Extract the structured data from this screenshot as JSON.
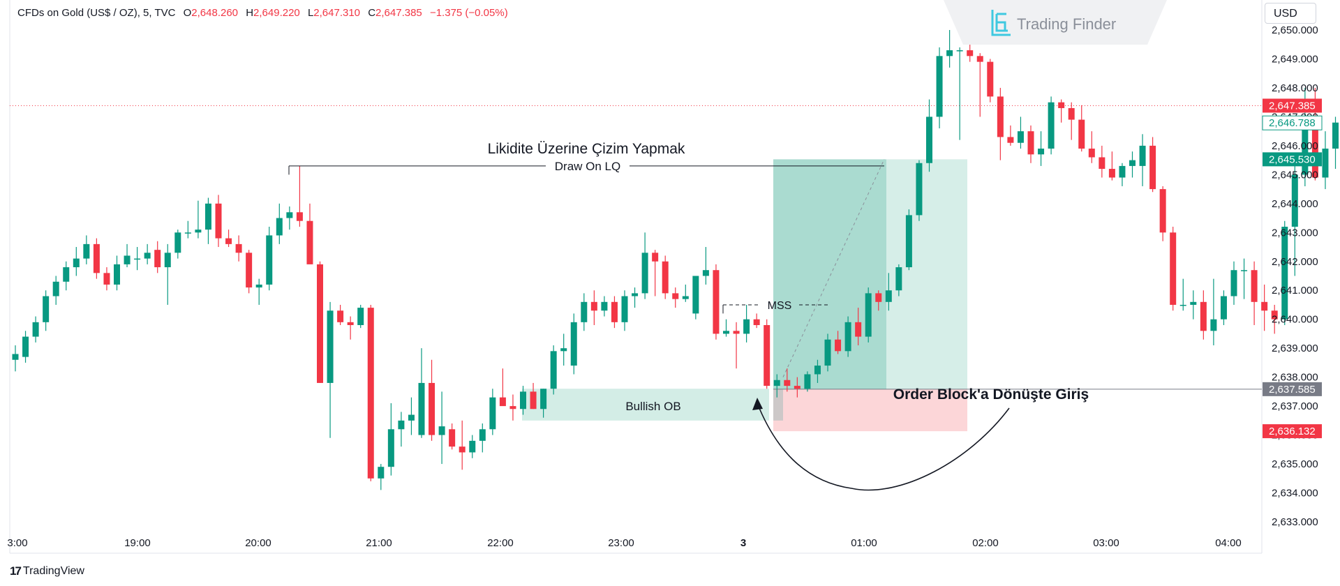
{
  "header": {
    "symbol": "CFDs on Gold (US$ / OZ), 5, TVC",
    "open_label": "O",
    "open": "2,648.260",
    "high_label": "H",
    "high": "2,649.220",
    "low_label": "L",
    "low": "2,647.310",
    "close_label": "C",
    "close": "2,647.385",
    "change": "−1.375 (−0.05%)"
  },
  "watermark": "Trading Finder",
  "currency_button": "USD",
  "footer_brand": "TradingView",
  "colors": {
    "up": "#089981",
    "down": "#f23645",
    "ob_zone": "#d3ede6",
    "target_zone": "#aadbd0",
    "target_zone_light": "#d6eee8",
    "stop_zone": "#fcd6d8"
  },
  "chart_data": {
    "type": "candlestick",
    "y_ticks": [
      "2,650.000",
      "2,649.000",
      "2,648.000",
      "2,647.000",
      "2,646.000",
      "2,645.000",
      "2,644.000",
      "2,643.000",
      "2,642.000",
      "2,641.000",
      "2,640.000",
      "2,639.000",
      "2,638.000",
      "2,637.000",
      "2,636.000",
      "2,635.000",
      "2,634.000",
      "2,633.000"
    ],
    "y_range": [
      2632.5,
      2650.3
    ],
    "x_ticks": [
      "3:00",
      "19:00",
      "20:00",
      "21:00",
      "22:00",
      "23:00",
      "3",
      "01:00",
      "02:00",
      "03:00",
      "04:00"
    ],
    "price_labels": [
      {
        "text": "2,647.385",
        "value": 2647.385,
        "kind": "last"
      },
      {
        "text": "2,646.788",
        "value": 2646.788,
        "kind": "outline"
      },
      {
        "text": "2,645.530",
        "value": 2645.53,
        "kind": "target"
      },
      {
        "text": "2,637.585",
        "value": 2637.585,
        "kind": "entry"
      },
      {
        "text": "2,636.132",
        "value": 2636.132,
        "kind": "stop"
      }
    ],
    "candles": [
      [
        2638.6,
        2639.1,
        2638.2,
        2638.8
      ],
      [
        2638.7,
        2639.6,
        2638.5,
        2639.4
      ],
      [
        2639.4,
        2640.1,
        2639.2,
        2639.9
      ],
      [
        2639.9,
        2641.0,
        2639.6,
        2640.8
      ],
      [
        2640.8,
        2641.5,
        2640.5,
        2641.3
      ],
      [
        2641.3,
        2642.0,
        2641.0,
        2641.8
      ],
      [
        2641.8,
        2642.5,
        2641.5,
        2642.1
      ],
      [
        2642.1,
        2642.9,
        2641.9,
        2642.6
      ],
      [
        2642.6,
        2642.8,
        2641.4,
        2641.6
      ],
      [
        2641.6,
        2641.8,
        2641.0,
        2641.2
      ],
      [
        2641.2,
        2642.2,
        2641.0,
        2641.9
      ],
      [
        2641.9,
        2642.6,
        2641.8,
        2642.2
      ],
      [
        2642.1,
        2642.5,
        2641.7,
        2642.1
      ],
      [
        2642.1,
        2642.6,
        2641.9,
        2642.3
      ],
      [
        2642.4,
        2642.7,
        2641.6,
        2641.8
      ],
      [
        2641.8,
        2642.6,
        2640.5,
        2642.3
      ],
      [
        2642.3,
        2643.1,
        2642.1,
        2643.0
      ],
      [
        2643.0,
        2643.4,
        2642.8,
        2643.0
      ],
      [
        2643.0,
        2644.1,
        2642.8,
        2643.1
      ],
      [
        2643.1,
        2644.2,
        2642.6,
        2644.0
      ],
      [
        2644.0,
        2644.3,
        2642.5,
        2642.8
      ],
      [
        2642.8,
        2643.1,
        2642.5,
        2642.6
      ],
      [
        2642.6,
        2642.9,
        2642.0,
        2642.3
      ],
      [
        2642.3,
        2642.4,
        2640.9,
        2641.1
      ],
      [
        2641.1,
        2641.4,
        2640.5,
        2641.2
      ],
      [
        2641.2,
        2643.2,
        2641.0,
        2642.9
      ],
      [
        2642.9,
        2644.0,
        2642.6,
        2643.5
      ],
      [
        2643.5,
        2643.9,
        2643.1,
        2643.7
      ],
      [
        2643.7,
        2645.3,
        2643.2,
        2643.4
      ],
      [
        2643.4,
        2644.0,
        2642.0,
        2641.9
      ],
      [
        2641.9,
        2642.0,
        2637.8,
        2637.8
      ],
      [
        2637.8,
        2640.6,
        2635.9,
        2640.3
      ],
      [
        2640.3,
        2640.5,
        2639.8,
        2639.9
      ],
      [
        2639.9,
        2640.1,
        2639.3,
        2639.8
      ],
      [
        2639.8,
        2640.5,
        2639.7,
        2640.4
      ],
      [
        2640.4,
        2640.5,
        2634.4,
        2634.5
      ],
      [
        2634.5,
        2635.0,
        2634.1,
        2634.9
      ],
      [
        2634.9,
        2637.1,
        2634.6,
        2636.2
      ],
      [
        2636.2,
        2636.8,
        2635.6,
        2636.5
      ],
      [
        2636.5,
        2637.3,
        2636.0,
        2636.7
      ],
      [
        2636.0,
        2639.0,
        2635.9,
        2637.8
      ],
      [
        2637.8,
        2638.6,
        2635.8,
        2636.0
      ],
      [
        2636.0,
        2637.5,
        2635.0,
        2636.3
      ],
      [
        2636.2,
        2636.4,
        2635.5,
        2635.6
      ],
      [
        2635.6,
        2636.5,
        2634.8,
        2635.4
      ],
      [
        2635.4,
        2636.0,
        2635.2,
        2635.8
      ],
      [
        2635.8,
        2636.4,
        2635.4,
        2636.2
      ],
      [
        2636.2,
        2637.6,
        2636.0,
        2637.3
      ],
      [
        2637.3,
        2638.3,
        2637.1,
        2637.0
      ],
      [
        2637.0,
        2637.4,
        2636.5,
        2636.9
      ],
      [
        2636.9,
        2637.7,
        2636.7,
        2637.5
      ],
      [
        2637.5,
        2637.8,
        2636.9,
        2636.9
      ],
      [
        2636.9,
        2637.6,
        2636.6,
        2637.6
      ],
      [
        2637.6,
        2639.1,
        2637.4,
        2638.9
      ],
      [
        2638.9,
        2639.5,
        2638.4,
        2639.0
      ],
      [
        2638.4,
        2640.2,
        2638.1,
        2639.9
      ],
      [
        2639.9,
        2640.9,
        2639.6,
        2640.6
      ],
      [
        2640.6,
        2641.0,
        2639.8,
        2640.3
      ],
      [
        2640.3,
        2640.8,
        2640.1,
        2640.6
      ],
      [
        2640.6,
        2640.8,
        2639.7,
        2639.9
      ],
      [
        2639.9,
        2641.0,
        2639.6,
        2640.8
      ],
      [
        2640.8,
        2641.1,
        2640.4,
        2640.9
      ],
      [
        2640.9,
        2643.0,
        2640.7,
        2642.3
      ],
      [
        2642.3,
        2642.4,
        2640.8,
        2642.0
      ],
      [
        2642.0,
        2642.2,
        2640.7,
        2640.9
      ],
      [
        2640.9,
        2641.1,
        2640.4,
        2640.7
      ],
      [
        2640.7,
        2641.2,
        2640.6,
        2640.8
      ],
      [
        2640.2,
        2641.5,
        2640.0,
        2641.5
      ],
      [
        2641.5,
        2642.5,
        2641.2,
        2641.7
      ],
      [
        2641.7,
        2641.9,
        2639.3,
        2639.5
      ],
      [
        2639.5,
        2640.0,
        2639.4,
        2639.6
      ],
      [
        2639.6,
        2639.9,
        2638.3,
        2639.5
      ],
      [
        2639.5,
        2640.5,
        2639.2,
        2640.0
      ],
      [
        2640.0,
        2640.2,
        2639.7,
        2639.8
      ],
      [
        2639.8,
        2640.0,
        2637.6,
        2637.7
      ],
      [
        2637.7,
        2638.1,
        2637.3,
        2637.9
      ],
      [
        2637.9,
        2638.3,
        2637.5,
        2637.7
      ],
      [
        2637.7,
        2638.0,
        2637.3,
        2637.6
      ],
      [
        2637.6,
        2638.2,
        2637.5,
        2638.1
      ],
      [
        2638.1,
        2638.6,
        2637.8,
        2638.4
      ],
      [
        2638.4,
        2639.5,
        2638.2,
        2639.3
      ],
      [
        2639.3,
        2639.6,
        2638.8,
        2638.9
      ],
      [
        2638.9,
        2640.1,
        2638.7,
        2639.9
      ],
      [
        2639.9,
        2640.4,
        2639.1,
        2639.4
      ],
      [
        2639.4,
        2641.1,
        2639.2,
        2640.9
      ],
      [
        2640.9,
        2641.0,
        2640.3,
        2640.6
      ],
      [
        2640.6,
        2641.6,
        2640.3,
        2641.0
      ],
      [
        2641.0,
        2641.9,
        2640.8,
        2641.8
      ],
      [
        2641.8,
        2643.8,
        2641.7,
        2643.6
      ],
      [
        2643.6,
        2645.5,
        2643.4,
        2645.4
      ],
      [
        2645.4,
        2647.6,
        2645.1,
        2647.0
      ],
      [
        2647.0,
        2649.4,
        2646.6,
        2649.1
      ],
      [
        2649.1,
        2650.0,
        2648.7,
        2649.3
      ],
      [
        2649.3,
        2649.4,
        2646.2,
        2649.3
      ],
      [
        2649.3,
        2649.8,
        2648.9,
        2649.1
      ],
      [
        2649.1,
        2649.2,
        2647.0,
        2648.9
      ],
      [
        2648.9,
        2649.0,
        2647.5,
        2647.7
      ],
      [
        2647.7,
        2648.0,
        2645.5,
        2646.3
      ],
      [
        2646.3,
        2646.7,
        2646.0,
        2646.1
      ],
      [
        2646.1,
        2647.0,
        2645.9,
        2646.5
      ],
      [
        2646.5,
        2646.7,
        2645.4,
        2645.7
      ],
      [
        2645.7,
        2646.5,
        2645.3,
        2645.9
      ],
      [
        2645.9,
        2647.7,
        2645.7,
        2647.5
      ],
      [
        2647.5,
        2647.6,
        2646.8,
        2647.3
      ],
      [
        2647.3,
        2647.5,
        2646.2,
        2646.9
      ],
      [
        2646.9,
        2647.4,
        2645.8,
        2645.9
      ],
      [
        2645.9,
        2646.5,
        2645.4,
        2645.6
      ],
      [
        2645.6,
        2646.0,
        2644.9,
        2645.2
      ],
      [
        2645.2,
        2645.8,
        2644.8,
        2644.9
      ],
      [
        2644.9,
        2645.4,
        2644.6,
        2645.3
      ],
      [
        2645.3,
        2645.8,
        2644.9,
        2645.5
      ],
      [
        2645.3,
        2646.4,
        2644.6,
        2646.0
      ],
      [
        2646.0,
        2646.3,
        2644.4,
        2644.5
      ],
      [
        2644.5,
        2644.6,
        2642.7,
        2643.0
      ],
      [
        2643.0,
        2643.2,
        2640.3,
        2640.5
      ],
      [
        2640.5,
        2641.4,
        2640.3,
        2640.5
      ],
      [
        2640.5,
        2641.0,
        2640.0,
        2640.6
      ],
      [
        2640.6,
        2641.0,
        2639.3,
        2639.6
      ],
      [
        2639.6,
        2641.4,
        2639.1,
        2640.0
      ],
      [
        2640.0,
        2641.0,
        2639.8,
        2640.8
      ],
      [
        2640.8,
        2642.0,
        2640.5,
        2641.7
      ],
      [
        2641.7,
        2642.1,
        2640.7,
        2641.7
      ],
      [
        2641.7,
        2642.0,
        2639.8,
        2640.6
      ],
      [
        2640.6,
        2641.2,
        2639.6,
        2640.3
      ],
      [
        2640.3,
        2640.5,
        2639.5,
        2640.0
      ],
      [
        2640.0,
        2643.4,
        2639.8,
        2643.2
      ],
      [
        2643.2,
        2645.3,
        2641.5,
        2645.0
      ],
      [
        2645.0,
        2648.0,
        2644.6,
        2646.8
      ],
      [
        2646.8,
        2648.0,
        2644.8,
        2644.9
      ],
      [
        2644.9,
        2646.5,
        2644.5,
        2645.9
      ],
      [
        2645.9,
        2647.0,
        2645.2,
        2646.8
      ]
    ],
    "annotations": {
      "title_tr": "Likidite Üzerine Çizim Yapmak",
      "draw_on_lq": "Draw On LQ",
      "mss": "MSS",
      "bullish_ob": "Bullish OB",
      "entry_caption": "Order Block'a Dönüşte Giriş"
    }
  }
}
